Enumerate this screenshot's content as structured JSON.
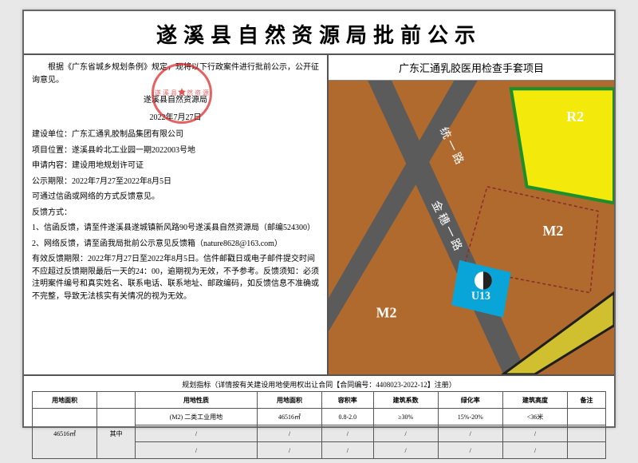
{
  "header": {
    "title": "遂溪县自然资源局批前公示"
  },
  "left": {
    "intro": "　　根据《广东省城乡规划条例》规定，现将以下行政案件进行批前公示，公开征询意见。",
    "signer_org": "遂溪县自然资源局",
    "signer_date": "2022年7月27日",
    "stamp_text": "遂 溪 县 自 然 资 源",
    "lines": {
      "unit": "建设单位：广东汇通乳胶制品集团有限公司",
      "loc": "项目位置：遂溪县岭北工业园一期2022003号地",
      "apply": "申请内容：建设用地规划许可证",
      "period": "公示期限：2022年7月27至2022年8月5日",
      "channel": "可通过信函或网络的方式反馈意见。",
      "fb_title": "反馈方式：",
      "fb1": "1、信函反馈，请至件遂溪县遂城镇新风路90号遂溪县自然资源局（邮编524300）",
      "fb2": "2、网络反馈，请至函我局批前公示意见反馈箱（nature8628@163.com）",
      "valid": "有效反馈期限：2022年7月27日至2022年8月5日。信件邮戳日或电子邮件提交时间不应超过反馈期限最后一天的24：00，逾期视为无效，不予参考。反馈须知：必须注明案件编号和真实姓名、联系电话、联系地址、邮政编码，如反馈信息不准确或不完整，导致无法核实有关情况的视为无效。"
    }
  },
  "right": {
    "map_title": "广东汇通乳胶医用检查手套项目",
    "labels": {
      "r2": "R2",
      "m2a": "M2",
      "m2b": "M2",
      "u13": "U13",
      "road": "金 穗 一 路",
      "road2": "统 一 路"
    }
  },
  "map_style": {
    "bg": "#b06a2e",
    "r2_fill": "#f3e90b",
    "r2_border": "#1c8f2b",
    "u13_fill": "#0aa5d8",
    "road_fill": "#5b5b5b",
    "highway_fill": "#d0c030",
    "highway_border": "#1f1f1f",
    "parcel_border": "#8a2a2a"
  },
  "table": {
    "caption": "规划指标（详情按有关建设用地使用权出让合同【合同编号：4408023-2022-12】注册）",
    "headers": [
      "用地面积",
      "",
      "用地性质",
      "用地面积",
      "容积率",
      "建筑系数",
      "绿化率",
      "建筑高度",
      "备注"
    ],
    "rows": [
      [
        "46516㎡",
        "其中",
        "(M2) 二类工业用地",
        "46516㎡",
        "0.8-2.0",
        "≥30%",
        "15%-20%",
        "<36米",
        ""
      ],
      [
        "",
        "",
        "/",
        "/",
        "/",
        "/",
        "/",
        "/",
        ""
      ],
      [
        "",
        "",
        "/",
        "/",
        "/",
        "/",
        "/",
        "/",
        ""
      ]
    ]
  }
}
